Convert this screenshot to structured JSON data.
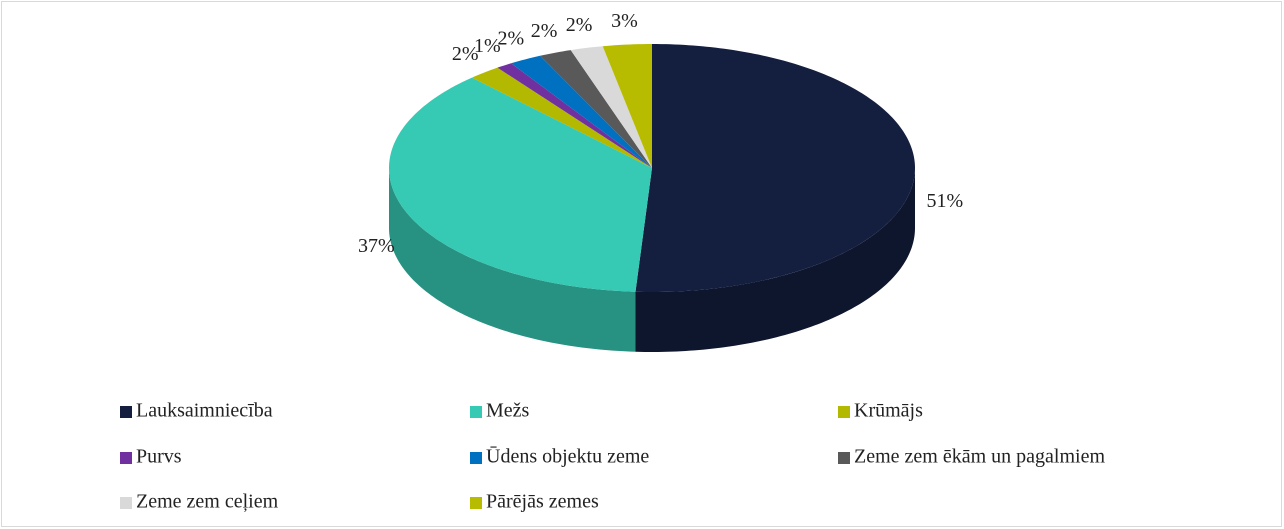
{
  "chart_data": {
    "type": "pie",
    "categories": [
      "Lauksaimniecība",
      "Mežs",
      "Krūmājs",
      "Purvs",
      "Ūdens objektu zeme",
      "Zeme zem ēkām un pagalmiem",
      "Zeme zem ceļiem",
      "Pārējās zemes"
    ],
    "values": [
      51,
      37,
      2,
      1,
      2,
      2,
      2,
      3
    ],
    "value_labels": [
      "51%",
      "37%",
      "2%",
      "1%",
      "2%",
      "2%",
      "2%",
      "3%"
    ],
    "colors": [
      "#141e3f",
      "#36c9b4",
      "#b3b800",
      "#7030a0",
      "#0070c0",
      "#595959",
      "#d9d9d9",
      "#b8bc00"
    ],
    "legend": "bottom"
  }
}
